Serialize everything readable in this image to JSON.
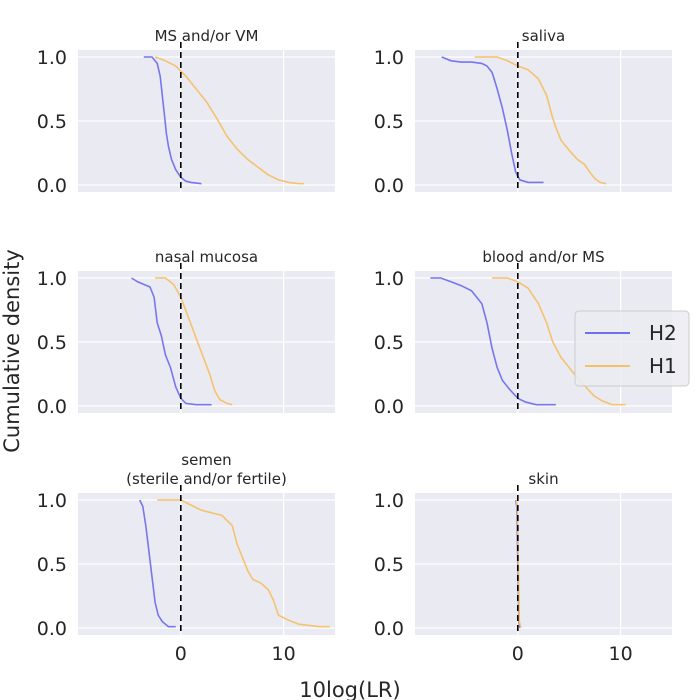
{
  "figure": {
    "ylabel": "Cumulative density",
    "xlabel": "10log(LR)"
  },
  "legend": [
    {
      "name": "H2",
      "color": "#7070ee"
    },
    {
      "name": "H1",
      "color": "#f5c066"
    }
  ],
  "chart_data": [
    {
      "type": "line",
      "title": "MS and/or VM",
      "xlim": [
        -10,
        15
      ],
      "ylim": [
        0,
        1
      ],
      "xticks": [
        0,
        10
      ],
      "yticks": [
        "0.0",
        "0.5",
        "1.0"
      ],
      "vline": 0,
      "series": [
        {
          "name": "H2",
          "points": [
            [
              -3.6,
              1.0
            ],
            [
              -2.8,
              1.0
            ],
            [
              -2.3,
              0.95
            ],
            [
              -2.0,
              0.85
            ],
            [
              -1.8,
              0.7
            ],
            [
              -1.6,
              0.55
            ],
            [
              -1.4,
              0.4
            ],
            [
              -1.2,
              0.3
            ],
            [
              -0.9,
              0.2
            ],
            [
              -0.5,
              0.12
            ],
            [
              0,
              0.06
            ],
            [
              0.5,
              0.03
            ],
            [
              1.0,
              0.02
            ],
            [
              2.0,
              0.01
            ]
          ]
        },
        {
          "name": "H1",
          "points": [
            [
              -2.5,
              1.0
            ],
            [
              -1.5,
              0.97
            ],
            [
              -0.5,
              0.93
            ],
            [
              0.5,
              0.85
            ],
            [
              1.5,
              0.75
            ],
            [
              2.5,
              0.65
            ],
            [
              3.5,
              0.52
            ],
            [
              4.5,
              0.38
            ],
            [
              5.5,
              0.28
            ],
            [
              6.5,
              0.2
            ],
            [
              7.5,
              0.14
            ],
            [
              8.5,
              0.08
            ],
            [
              9.5,
              0.04
            ],
            [
              10.5,
              0.02
            ],
            [
              11.5,
              0.01
            ],
            [
              12.0,
              0.01
            ]
          ]
        }
      ]
    },
    {
      "type": "line",
      "title": "saliva",
      "xlim": [
        -10,
        15
      ],
      "ylim": [
        0,
        1
      ],
      "xticks": [
        0,
        10
      ],
      "yticks": [
        "0.0",
        "0.5",
        "1.0"
      ],
      "vline": 0,
      "series": [
        {
          "name": "H2",
          "points": [
            [
              -7.4,
              1.0
            ],
            [
              -6.5,
              0.97
            ],
            [
              -5.5,
              0.96
            ],
            [
              -4.5,
              0.96
            ],
            [
              -3.5,
              0.95
            ],
            [
              -3.0,
              0.93
            ],
            [
              -2.5,
              0.88
            ],
            [
              -2.0,
              0.75
            ],
            [
              -1.5,
              0.6
            ],
            [
              -1.0,
              0.42
            ],
            [
              -0.6,
              0.25
            ],
            [
              -0.2,
              0.1
            ],
            [
              0.2,
              0.04
            ],
            [
              1.0,
              0.02
            ],
            [
              2.5,
              0.02
            ]
          ]
        },
        {
          "name": "H1",
          "points": [
            [
              -4.2,
              1.0
            ],
            [
              -2.0,
              1.0
            ],
            [
              -1.0,
              0.97
            ],
            [
              0,
              0.93
            ],
            [
              1.0,
              0.9
            ],
            [
              2.0,
              0.83
            ],
            [
              2.8,
              0.7
            ],
            [
              3.3,
              0.55
            ],
            [
              3.7,
              0.45
            ],
            [
              4.2,
              0.35
            ],
            [
              5.0,
              0.27
            ],
            [
              5.8,
              0.2
            ],
            [
              6.5,
              0.16
            ],
            [
              7.0,
              0.1
            ],
            [
              7.5,
              0.05
            ],
            [
              8.0,
              0.02
            ],
            [
              8.6,
              0.01
            ]
          ]
        }
      ]
    },
    {
      "type": "line",
      "title": "nasal mucosa",
      "xlim": [
        -10,
        15
      ],
      "ylim": [
        0,
        1
      ],
      "xticks": [
        0,
        10
      ],
      "yticks": [
        "0.0",
        "0.5",
        "1.0"
      ],
      "vline": 0,
      "series": [
        {
          "name": "H2",
          "points": [
            [
              -4.8,
              1.0
            ],
            [
              -4.2,
              0.97
            ],
            [
              -3.6,
              0.95
            ],
            [
              -3.0,
              0.93
            ],
            [
              -2.6,
              0.85
            ],
            [
              -2.3,
              0.65
            ],
            [
              -1.9,
              0.55
            ],
            [
              -1.5,
              0.4
            ],
            [
              -1.0,
              0.3
            ],
            [
              -0.5,
              0.15
            ],
            [
              0,
              0.06
            ],
            [
              0.5,
              0.02
            ],
            [
              1.5,
              0.01
            ],
            [
              3.0,
              0.01
            ]
          ]
        },
        {
          "name": "H1",
          "points": [
            [
              -2.5,
              1.0
            ],
            [
              -1.5,
              1.0
            ],
            [
              -0.7,
              0.95
            ],
            [
              0,
              0.85
            ],
            [
              0.7,
              0.7
            ],
            [
              1.4,
              0.55
            ],
            [
              2.1,
              0.4
            ],
            [
              2.8,
              0.25
            ],
            [
              3.3,
              0.12
            ],
            [
              3.8,
              0.05
            ],
            [
              4.5,
              0.02
            ],
            [
              5.0,
              0.01
            ]
          ]
        }
      ]
    },
    {
      "type": "line",
      "title": "blood and/or MS",
      "xlim": [
        -10,
        15
      ],
      "ylim": [
        0,
        1
      ],
      "xticks": [
        0,
        10
      ],
      "yticks": [
        "0.0",
        "0.5",
        "1.0"
      ],
      "vline": 0,
      "series": [
        {
          "name": "H2",
          "points": [
            [
              -8.5,
              1.0
            ],
            [
              -7.5,
              1.0
            ],
            [
              -6.5,
              0.97
            ],
            [
              -5.5,
              0.94
            ],
            [
              -4.5,
              0.9
            ],
            [
              -3.5,
              0.8
            ],
            [
              -3.0,
              0.65
            ],
            [
              -2.5,
              0.45
            ],
            [
              -2.0,
              0.3
            ],
            [
              -1.5,
              0.2
            ],
            [
              -0.8,
              0.13
            ],
            [
              0,
              0.06
            ],
            [
              0.8,
              0.03
            ],
            [
              1.8,
              0.01
            ],
            [
              3.7,
              0.01
            ]
          ]
        },
        {
          "name": "H1",
          "points": [
            [
              -2.5,
              1.0
            ],
            [
              -1.0,
              1.0
            ],
            [
              0,
              0.97
            ],
            [
              1.0,
              0.92
            ],
            [
              2.0,
              0.8
            ],
            [
              2.8,
              0.65
            ],
            [
              3.4,
              0.5
            ],
            [
              4.2,
              0.38
            ],
            [
              5.0,
              0.3
            ],
            [
              5.8,
              0.22
            ],
            [
              6.6,
              0.15
            ],
            [
              7.4,
              0.08
            ],
            [
              8.2,
              0.04
            ],
            [
              9.2,
              0.01
            ],
            [
              10.5,
              0.01
            ]
          ]
        }
      ]
    },
    {
      "type": "line",
      "title": "semen\n(sterile and/or fertile)",
      "xlim": [
        -10,
        15
      ],
      "ylim": [
        0,
        1
      ],
      "xticks": [
        0,
        10
      ],
      "yticks": [
        "0.0",
        "0.5",
        "1.0"
      ],
      "vline": 0,
      "series": [
        {
          "name": "H2",
          "points": [
            [
              -4.0,
              1.0
            ],
            [
              -3.7,
              0.95
            ],
            [
              -3.4,
              0.8
            ],
            [
              -3.1,
              0.6
            ],
            [
              -2.8,
              0.4
            ],
            [
              -2.5,
              0.2
            ],
            [
              -2.2,
              0.1
            ],
            [
              -1.8,
              0.05
            ],
            [
              -1.2,
              0.01
            ],
            [
              -0.5,
              0.01
            ]
          ]
        },
        {
          "name": "H1",
          "points": [
            [
              -2.3,
              1.0
            ],
            [
              -1.0,
              1.0
            ],
            [
              0,
              1.0
            ],
            [
              1.0,
              0.96
            ],
            [
              2.0,
              0.92
            ],
            [
              3.0,
              0.9
            ],
            [
              4.0,
              0.88
            ],
            [
              5.0,
              0.8
            ],
            [
              5.5,
              0.65
            ],
            [
              6.0,
              0.55
            ],
            [
              6.5,
              0.45
            ],
            [
              7.0,
              0.38
            ],
            [
              7.8,
              0.35
            ],
            [
              8.5,
              0.3
            ],
            [
              9.0,
              0.22
            ],
            [
              9.5,
              0.1
            ],
            [
              10.5,
              0.06
            ],
            [
              11.5,
              0.03
            ],
            [
              12.5,
              0.02
            ],
            [
              13.5,
              0.01
            ],
            [
              14.5,
              0.01
            ]
          ]
        }
      ]
    },
    {
      "type": "line",
      "title": "skin",
      "xlim": [
        -10,
        15
      ],
      "ylim": [
        0,
        1
      ],
      "xticks": [
        0,
        10
      ],
      "yticks": [
        "0.0",
        "0.5",
        "1.0"
      ],
      "vline": 0,
      "series": [
        {
          "name": "H2",
          "points": [
            [
              -0.2,
              1.0
            ],
            [
              -0.1,
              0.95
            ],
            [
              0,
              0.5
            ],
            [
              0.1,
              0.05
            ],
            [
              0.2,
              0.0
            ]
          ]
        },
        {
          "name": "H1",
          "points": [
            [
              -0.15,
              1.0
            ],
            [
              -0.05,
              0.95
            ],
            [
              0.05,
              0.5
            ],
            [
              0.15,
              0.05
            ],
            [
              0.3,
              0.0
            ]
          ]
        }
      ]
    }
  ]
}
